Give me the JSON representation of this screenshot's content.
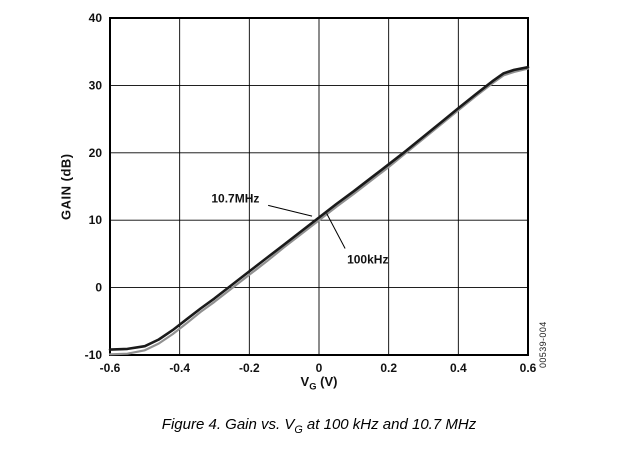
{
  "figure": {
    "caption_prefix": "Figure 4. Gain vs. V",
    "caption_sub": "G",
    "caption_suffix": " at 100 kHz and 10.7 MHz",
    "watermark": "00539-004"
  },
  "chart_data": {
    "type": "line",
    "title": "",
    "ylabel": "GAIN (dB)",
    "xlabel_main": "V",
    "xlabel_sub": "G",
    "xlabel_unit": " (V)",
    "xlim": [
      -0.6,
      0.6
    ],
    "ylim": [
      -10,
      40
    ],
    "grid": true,
    "legend": "none (annotated labels on plot)",
    "x_ticks": [
      -0.6,
      -0.4,
      -0.2,
      0,
      0.2,
      0.4,
      0.6
    ],
    "x_tick_labels": [
      "-0.6",
      "-0.4",
      "-0.2",
      "0",
      "0.2",
      "0.4",
      "0.6"
    ],
    "y_ticks": [
      -10,
      0,
      10,
      20,
      30,
      40
    ],
    "y_tick_labels": [
      "-10",
      "0",
      "10",
      "20",
      "30",
      "40"
    ],
    "series": [
      {
        "name": "100kHz",
        "color": "#909090",
        "width": 2.2,
        "x": [
          -0.6,
          -0.55,
          -0.5,
          -0.46,
          -0.42,
          -0.38,
          -0.34,
          -0.3,
          -0.25,
          -0.2,
          -0.15,
          -0.1,
          -0.05,
          0.0,
          0.05,
          0.1,
          0.15,
          0.2,
          0.25,
          0.3,
          0.35,
          0.4,
          0.45,
          0.5,
          0.53,
          0.56,
          0.6
        ],
        "y": [
          -9.9,
          -9.8,
          -9.3,
          -8.3,
          -6.9,
          -5.3,
          -3.6,
          -2.1,
          -0.1,
          1.9,
          3.9,
          6.0,
          8.0,
          10.0,
          12.0,
          13.9,
          15.9,
          17.9,
          20.0,
          22.1,
          24.2,
          26.3,
          28.4,
          30.4,
          31.5,
          32.0,
          32.5
        ]
      },
      {
        "name": "10.7MHz",
        "color": "#1a1a1a",
        "width": 2.6,
        "x": [
          -0.6,
          -0.55,
          -0.5,
          -0.46,
          -0.42,
          -0.38,
          -0.34,
          -0.3,
          -0.25,
          -0.2,
          -0.15,
          -0.1,
          -0.05,
          0.0,
          0.05,
          0.1,
          0.15,
          0.2,
          0.25,
          0.3,
          0.35,
          0.4,
          0.45,
          0.5,
          0.53,
          0.56,
          0.6
        ],
        "y": [
          -9.2,
          -9.1,
          -8.7,
          -7.7,
          -6.3,
          -4.7,
          -3.1,
          -1.6,
          0.4,
          2.4,
          4.4,
          6.4,
          8.4,
          10.4,
          12.4,
          14.3,
          16.3,
          18.3,
          20.3,
          22.4,
          24.5,
          26.6,
          28.7,
          30.7,
          31.8,
          32.3,
          32.7
        ]
      }
    ],
    "annotations": [
      {
        "label": "10.7MHz",
        "x": -0.24,
        "y": 12.6,
        "line": [
          [
            -0.146,
            12.2
          ],
          [
            -0.02,
            10.6
          ]
        ]
      },
      {
        "label": "100kHz",
        "x": 0.14,
        "y": 3.6,
        "line": [
          [
            0.075,
            5.8
          ],
          [
            0.022,
            11.0
          ]
        ]
      }
    ]
  }
}
